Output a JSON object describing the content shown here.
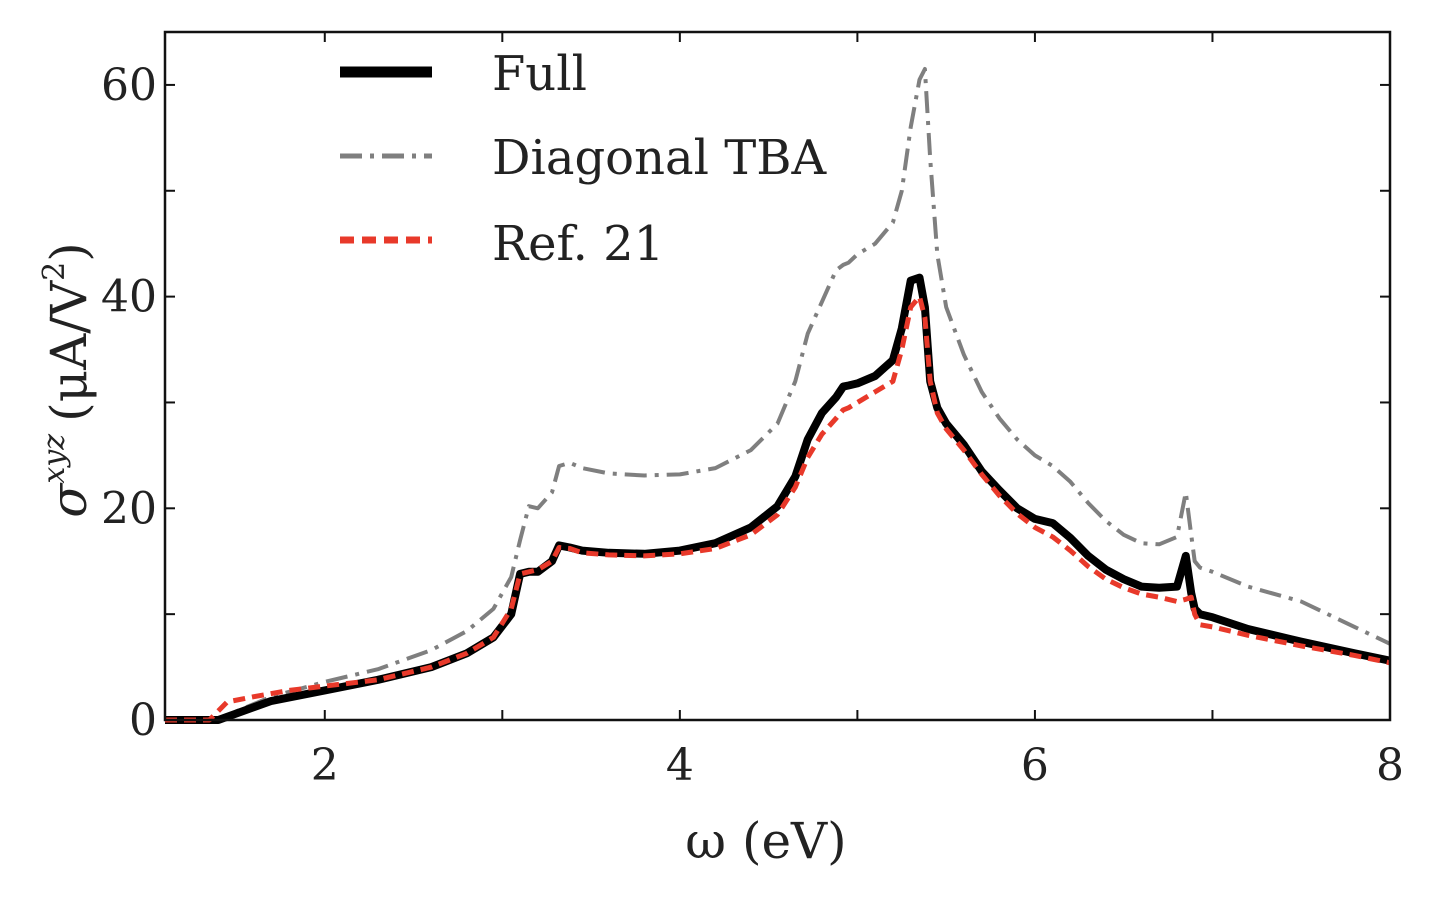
{
  "chart_data": {
    "type": "line",
    "xlabel": "ω (eV)",
    "ylabel": {
      "symbol": "σ",
      "superscript": "xyz",
      "units_open": "(μA/V",
      "units_sup": "2",
      "units_close": ")"
    },
    "xlim": [
      1.1,
      8.0
    ],
    "ylim": [
      0,
      65
    ],
    "xticks": [
      {
        "value": 2,
        "label": "2"
      },
      {
        "value": 4,
        "label": "4"
      },
      {
        "value": 6,
        "label": "6"
      },
      {
        "value": 8,
        "label": "8"
      }
    ],
    "yticks": [
      {
        "value": 0,
        "label": "0"
      },
      {
        "value": 20,
        "label": "20"
      },
      {
        "value": 40,
        "label": "40"
      },
      {
        "value": 60,
        "label": "60"
      }
    ],
    "legend_position": "top-left",
    "series": [
      {
        "name": "Full",
        "color": "#000000",
        "style": "solid",
        "x": [
          1.1,
          1.4,
          1.5,
          1.7,
          2.0,
          2.3,
          2.6,
          2.8,
          2.95,
          3.05,
          3.1,
          3.15,
          3.2,
          3.28,
          3.32,
          3.38,
          3.45,
          3.6,
          3.8,
          4.0,
          4.2,
          4.4,
          4.55,
          4.65,
          4.72,
          4.8,
          4.88,
          4.92,
          4.95,
          5.0,
          5.1,
          5.2,
          5.25,
          5.3,
          5.35,
          5.38,
          5.41,
          5.45,
          5.5,
          5.6,
          5.7,
          5.8,
          5.9,
          6.0,
          6.1,
          6.2,
          6.3,
          6.4,
          6.5,
          6.6,
          6.7,
          6.8,
          6.85,
          6.88,
          6.9,
          6.93,
          7.0,
          7.2,
          7.5,
          7.8,
          8.0
        ],
        "y": [
          0,
          0,
          0.6,
          1.8,
          2.8,
          3.8,
          5.0,
          6.3,
          7.8,
          10.0,
          13.8,
          14.0,
          14.0,
          15.0,
          16.5,
          16.3,
          16.0,
          15.8,
          15.7,
          16.0,
          16.7,
          18.2,
          20.2,
          23.0,
          26.5,
          29.0,
          30.5,
          31.5,
          31.6,
          31.8,
          32.5,
          34.0,
          37.0,
          41.5,
          41.8,
          39.0,
          32.0,
          29.5,
          28.0,
          26.0,
          23.5,
          21.7,
          20.0,
          19.0,
          18.6,
          17.2,
          15.5,
          14.2,
          13.3,
          12.6,
          12.5,
          12.6,
          15.5,
          12.0,
          10.5,
          10.0,
          9.7,
          8.6,
          7.4,
          6.3,
          5.6
        ]
      },
      {
        "name": "Diagonal TBA",
        "color": "#7f7f7f",
        "style": "dashdot",
        "x": [
          1.1,
          1.4,
          1.5,
          1.7,
          2.0,
          2.3,
          2.6,
          2.8,
          2.95,
          3.05,
          3.1,
          3.15,
          3.2,
          3.28,
          3.32,
          3.38,
          3.45,
          3.6,
          3.8,
          4.0,
          4.2,
          4.4,
          4.55,
          4.65,
          4.72,
          4.8,
          4.88,
          4.92,
          4.95,
          5.0,
          5.1,
          5.2,
          5.25,
          5.3,
          5.35,
          5.38,
          5.41,
          5.45,
          5.5,
          5.6,
          5.7,
          5.8,
          5.9,
          6.0,
          6.1,
          6.2,
          6.3,
          6.4,
          6.5,
          6.6,
          6.7,
          6.8,
          6.85,
          6.88,
          6.9,
          6.93,
          7.0,
          7.2,
          7.5,
          7.8,
          8.0
        ],
        "y": [
          0,
          0,
          0.8,
          2.2,
          3.6,
          4.8,
          6.6,
          8.4,
          10.5,
          13.5,
          17.0,
          20.2,
          20.0,
          21.5,
          24.0,
          24.3,
          23.8,
          23.3,
          23.1,
          23.2,
          23.8,
          25.5,
          28.0,
          32.0,
          36.5,
          39.5,
          42.5,
          43.0,
          43.2,
          44.0,
          45.0,
          47.0,
          50.0,
          56.0,
          60.5,
          61.5,
          53.0,
          44.0,
          39.0,
          34.5,
          31.0,
          28.5,
          26.5,
          25.0,
          24.0,
          22.5,
          20.5,
          18.8,
          17.5,
          16.7,
          16.6,
          17.3,
          21.5,
          17.5,
          15.0,
          14.4,
          14.0,
          12.6,
          11.2,
          8.8,
          7.2
        ]
      },
      {
        "name": "Ref. 21",
        "color": "#e8392a",
        "style": "dashed",
        "x": [
          1.1,
          1.35,
          1.45,
          1.6,
          1.8,
          2.0,
          2.3,
          2.6,
          2.8,
          2.95,
          3.05,
          3.1,
          3.15,
          3.2,
          3.28,
          3.32,
          3.38,
          3.45,
          3.6,
          3.8,
          4.0,
          4.2,
          4.4,
          4.55,
          4.65,
          4.72,
          4.8,
          4.88,
          4.92,
          4.95,
          5.0,
          5.1,
          5.2,
          5.25,
          5.3,
          5.35,
          5.38,
          5.41,
          5.45,
          5.5,
          5.6,
          5.7,
          5.8,
          5.9,
          6.0,
          6.1,
          6.2,
          6.3,
          6.4,
          6.5,
          6.6,
          6.7,
          6.8,
          6.85,
          6.88,
          6.9,
          6.93,
          7.0,
          7.2,
          7.5,
          7.8,
          8.0
        ],
        "y": [
          0,
          0,
          1.7,
          2.2,
          2.8,
          3.2,
          3.8,
          5.0,
          6.3,
          7.8,
          10.5,
          13.8,
          14.0,
          14.2,
          15.0,
          16.3,
          16.2,
          15.8,
          15.6,
          15.5,
          15.7,
          16.2,
          17.5,
          19.4,
          22.0,
          24.8,
          27.0,
          28.5,
          29.3,
          29.5,
          30.0,
          31.0,
          32.0,
          35.0,
          39.0,
          40.0,
          38.0,
          32.0,
          29.0,
          27.5,
          25.5,
          23.2,
          21.2,
          19.5,
          18.2,
          17.3,
          16.0,
          14.5,
          13.3,
          12.5,
          11.9,
          11.6,
          11.2,
          11.4,
          11.6,
          10.0,
          9.0,
          8.8,
          8.0,
          7.0,
          6.1,
          5.4
        ]
      }
    ]
  }
}
